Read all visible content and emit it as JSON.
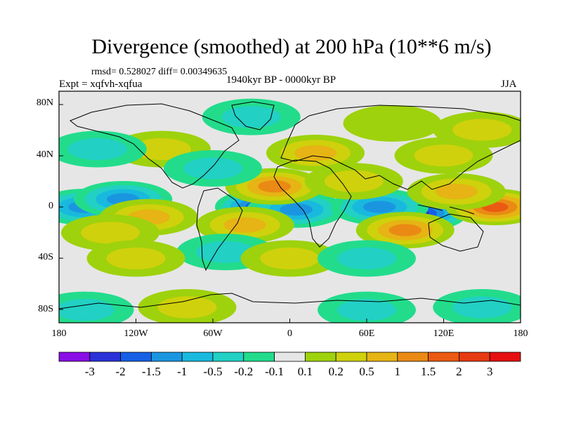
{
  "title": "Divergence (smoothed) at 200 hPa (10**6 m/s)",
  "stats": "rmsd= 0.528027 diff= 0.00349635",
  "expt": "Expt = xqfvh-xqfua",
  "period": "1940kyr BP - 0000kyr BP",
  "season": "JJA",
  "map": {
    "lat_labels": [
      "80N",
      "40N",
      "0",
      "40S",
      "80S"
    ],
    "lon_labels": [
      "180",
      "120W",
      "60W",
      "0",
      "60E",
      "120E",
      "180"
    ]
  },
  "colorbar": {
    "labels": [
      "-3",
      "-2",
      "-1.5",
      "-1",
      "-0.5",
      "-0.2",
      "-0.1",
      "0.1",
      "0.2",
      "0.5",
      "1",
      "1.5",
      "2",
      "3"
    ],
    "colors": [
      "#8a0ee6",
      "#2a32d8",
      "#1660e6",
      "#1a96e0",
      "#19b9de",
      "#22d0c4",
      "#22dc8c",
      "#e6e6e6",
      "#9ed20c",
      "#cfd10c",
      "#e6b414",
      "#ea8a14",
      "#eb5a12",
      "#e63a12",
      "#e61010"
    ]
  },
  "anomalies": [
    {
      "lon": -160,
      "lat": 0,
      "v": -1.2
    },
    {
      "lon": -130,
      "lat": 6,
      "v": -1.5
    },
    {
      "lon": -110,
      "lat": -8,
      "v": 0.8
    },
    {
      "lon": -140,
      "lat": -20,
      "v": 0.6
    },
    {
      "lon": -20,
      "lat": 0,
      "v": -3
    },
    {
      "lon": 5,
      "lat": -2,
      "v": -1.2
    },
    {
      "lon": -12,
      "lat": 16,
      "v": 1.2
    },
    {
      "lon": -35,
      "lat": -14,
      "v": 1.0
    },
    {
      "lon": 100,
      "lat": -5,
      "v": -3
    },
    {
      "lon": 70,
      "lat": 0,
      "v": -1.5
    },
    {
      "lon": 90,
      "lat": -18,
      "v": 1.5
    },
    {
      "lon": 160,
      "lat": 0,
      "v": 1.8
    },
    {
      "lon": 130,
      "lat": 12,
      "v": 0.8
    },
    {
      "lon": 20,
      "lat": 42,
      "v": 0.8
    },
    {
      "lon": 120,
      "lat": 40,
      "v": 0.5
    },
    {
      "lon": -100,
      "lat": 45,
      "v": 0.4
    },
    {
      "lon": -60,
      "lat": 30,
      "v": -0.5
    },
    {
      "lon": 50,
      "lat": 20,
      "v": 0.5
    },
    {
      "lon": -50,
      "lat": -35,
      "v": -0.6
    },
    {
      "lon": 0,
      "lat": -40,
      "v": 0.4
    },
    {
      "lon": 60,
      "lat": -40,
      "v": -0.5
    },
    {
      "lon": -150,
      "lat": 45,
      "v": -0.5
    },
    {
      "lon": 150,
      "lat": 60,
      "v": 0.4
    },
    {
      "lon": -30,
      "lat": 70,
      "v": -0.4
    },
    {
      "lon": 80,
      "lat": 65,
      "v": 0.3
    },
    {
      "lon": 60,
      "lat": -80,
      "v": -0.6
    },
    {
      "lon": -80,
      "lat": -78,
      "v": 0.4
    },
    {
      "lon": -160,
      "lat": -80,
      "v": -0.5
    },
    {
      "lon": 150,
      "lat": -78,
      "v": -0.4
    },
    {
      "lon": -120,
      "lat": -40,
      "v": 0.4
    }
  ]
}
